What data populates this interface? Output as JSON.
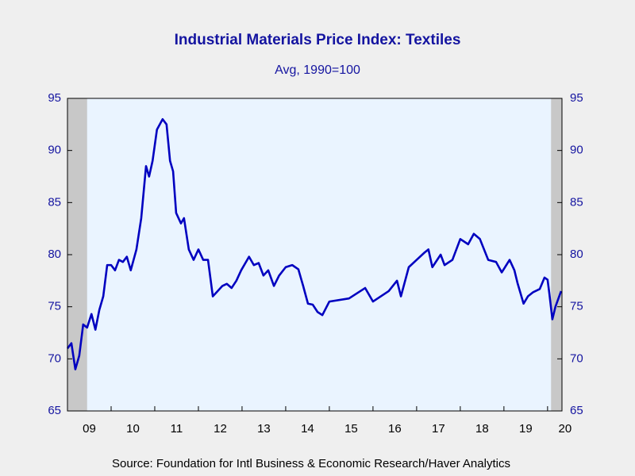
{
  "chart_data": {
    "type": "line",
    "title": "Industrial Materials Price Index: Textiles",
    "subtitle": "Avg, 1990=100",
    "source": "Source:  Foundation for Intl Business & Economic Research/Haver Analytics",
    "x": [
      2009.0,
      2009.09,
      2009.18,
      2009.27,
      2009.36,
      2009.45,
      2009.55,
      2009.64,
      2009.73,
      2009.82,
      2009.91,
      2010.0,
      2010.09,
      2010.18,
      2010.27,
      2010.36,
      2010.45,
      2010.58,
      2010.69,
      2010.8,
      2010.87,
      2010.95,
      2011.05,
      2011.18,
      2011.27,
      2011.35,
      2011.42,
      2011.49,
      2011.6,
      2011.67,
      2011.78,
      2011.89,
      2012.0,
      2012.11,
      2012.22,
      2012.33,
      2012.44,
      2012.55,
      2012.65,
      2012.76,
      2012.87,
      2012.98,
      2013.16,
      2013.27,
      2013.38,
      2013.49,
      2013.6,
      2013.73,
      2013.85,
      2014.0,
      2014.15,
      2014.29,
      2014.4,
      2014.51,
      2014.62,
      2014.73,
      2014.84,
      2015.0,
      2015.45,
      2015.82,
      2016.0,
      2016.36,
      2016.55,
      2016.64,
      2016.82,
      2017.0,
      2017.18,
      2017.27,
      2017.36,
      2017.55,
      2017.64,
      2017.82,
      2018.0,
      2018.18,
      2018.31,
      2018.45,
      2018.64,
      2018.82,
      2018.95,
      2019.13,
      2019.24,
      2019.31,
      2019.45,
      2019.55,
      2019.67,
      2019.82,
      2019.93,
      2020.0,
      2020.04,
      2020.11,
      2020.18,
      2020.31
    ],
    "series": [
      {
        "name": "Textiles",
        "color": "#0000c0",
        "values": [
          71,
          71.5,
          69,
          70.3,
          73.3,
          73,
          74.3,
          72.8,
          74.7,
          76,
          79,
          79,
          78.5,
          79.5,
          79.3,
          79.8,
          78.5,
          80.5,
          83.5,
          88.5,
          87.5,
          89,
          92,
          93,
          92.5,
          89,
          88,
          84,
          83,
          83.5,
          80.5,
          79.5,
          80.5,
          79.5,
          79.5,
          76,
          76.5,
          77,
          77.2,
          76.8,
          77.5,
          78.5,
          79.8,
          79,
          79.2,
          78,
          78.5,
          77,
          78,
          78.8,
          79,
          78.6,
          77,
          75.3,
          75.2,
          74.5,
          74.2,
          75.5,
          75.8,
          76.8,
          75.5,
          76.5,
          77.5,
          76,
          78.8,
          79.5,
          80.2,
          80.5,
          78.8,
          80,
          79,
          79.5,
          81.5,
          81,
          82,
          81.5,
          79.5,
          79.3,
          78.3,
          79.5,
          78.5,
          77.3,
          75.3,
          76,
          76.4,
          76.7,
          77.8,
          77.6,
          76.3,
          73.8,
          75,
          76.5
        ]
      }
    ],
    "recessions": [
      [
        2009.0,
        2009.45
      ],
      [
        2020.08,
        2020.33
      ]
    ],
    "recession_color": "#c8c8c8",
    "xlim": [
      2009.0,
      2020.33
    ],
    "xticks": [
      {
        "value": 2009.5,
        "label": "09"
      },
      {
        "value": 2010.5,
        "label": "10"
      },
      {
        "value": 2011.5,
        "label": "11"
      },
      {
        "value": 2012.5,
        "label": "12"
      },
      {
        "value": 2013.5,
        "label": "13"
      },
      {
        "value": 2014.5,
        "label": "14"
      },
      {
        "value": 2015.5,
        "label": "15"
      },
      {
        "value": 2016.5,
        "label": "16"
      },
      {
        "value": 2017.5,
        "label": "17"
      },
      {
        "value": 2018.5,
        "label": "18"
      },
      {
        "value": 2019.5,
        "label": "19"
      },
      {
        "value": 2020.4,
        "label": "20"
      }
    ],
    "ylim": [
      65,
      95
    ],
    "yticks": [
      65,
      70,
      75,
      80,
      85,
      90,
      95
    ]
  }
}
